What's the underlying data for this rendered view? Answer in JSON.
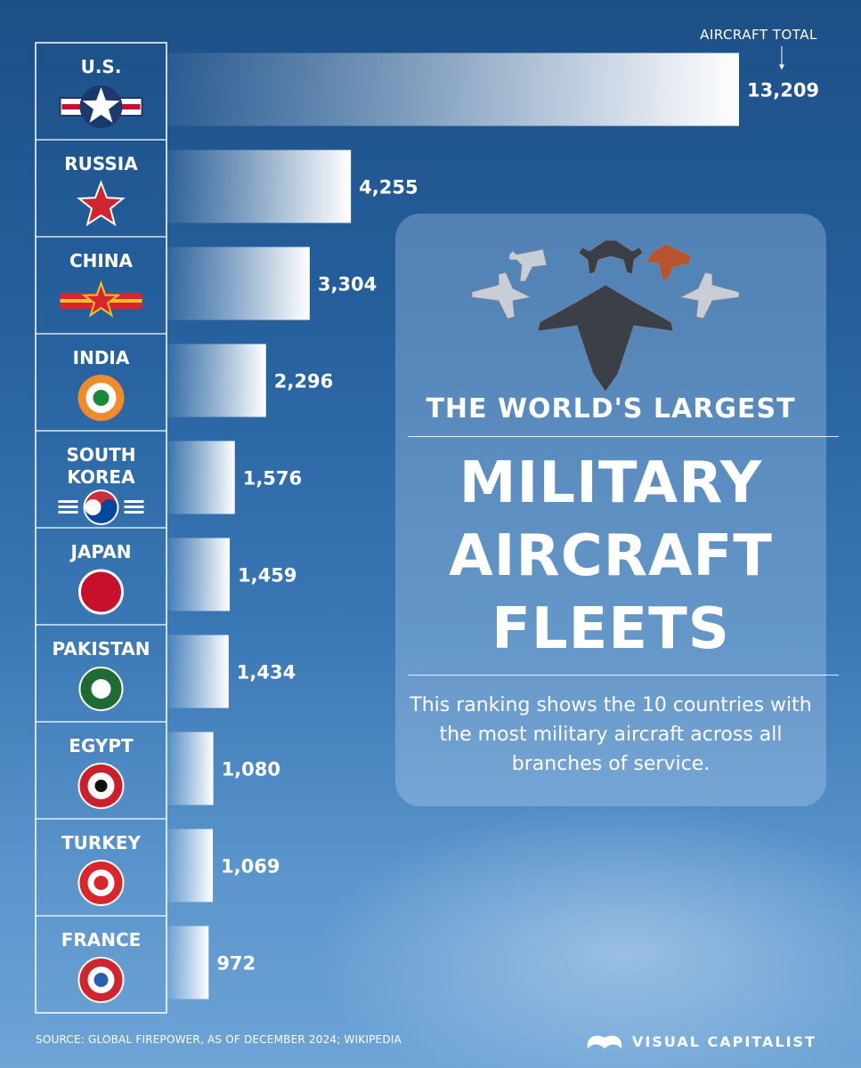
{
  "header": {
    "kicker": "THE WORLD'S LARGEST",
    "title_lines": [
      "MILITARY",
      "AIRCRAFT",
      "FLEETS"
    ],
    "subtitle": "This ranking shows the 10 countries with the most military aircraft across all branches of service."
  },
  "chart_data": {
    "type": "bar",
    "orientation": "horizontal",
    "categories": [
      "U.S.",
      "RUSSIA",
      "CHINA",
      "INDIA",
      "SOUTH KOREA",
      "JAPAN",
      "PAKISTAN",
      "EGYPT",
      "TURKEY",
      "FRANCE"
    ],
    "values": [
      13209,
      4255,
      3304,
      2296,
      1576,
      1459,
      1434,
      1080,
      1069,
      972
    ],
    "value_labels": [
      "13,209",
      "4,255",
      "3,304",
      "2,296",
      "1,576",
      "1,459",
      "1,434",
      "1,080",
      "1,069",
      "972"
    ],
    "annotation": "AIRCRAFT TOTAL",
    "grid": false,
    "legend": "none"
  },
  "footer": {
    "source": "SOURCE: GLOBAL FIREPOWER, AS OF DECEMBER 2024; WIKIPEDIA",
    "brand": "VISUAL CAPITALIST"
  },
  "icons": {
    "bar_icon": "fighter-jet-silhouette-icon",
    "flags": [
      "us-roundel-icon",
      "russia-star-icon",
      "china-roundel-icon",
      "india-roundel-icon",
      "south-korea-roundel-icon",
      "japan-roundel-icon",
      "pakistan-roundel-icon",
      "egypt-roundel-icon",
      "turkey-roundel-icon",
      "france-roundel-icon"
    ]
  },
  "colors": {
    "background_top": "#1d4f86",
    "background_bottom": "#6ea4d6",
    "us_red": "#c8102e",
    "us_blue": "#1a3a6b",
    "russia_red": "#d0242f",
    "china_red": "#d8262b",
    "china_yellow": "#f2c02b",
    "india_saffron": "#f08a2a",
    "india_green": "#1a8a3a",
    "korea_red": "#cd2e3a",
    "korea_blue": "#0047a0",
    "japan_red": "#c8102e",
    "pakistan_green": "#1f6b33",
    "egypt_red": "#cc1f2b",
    "turkey_red": "#d8262b",
    "france_red": "#d0242f",
    "france_blue": "#2a5cb0"
  }
}
